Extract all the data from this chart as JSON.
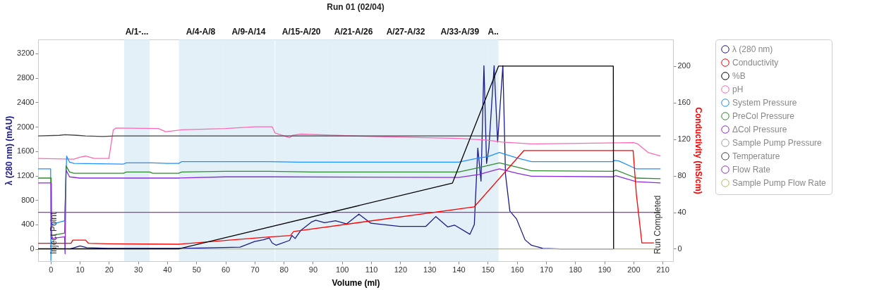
{
  "chart_data": {
    "type": "line",
    "title": "Run 01 (02/04)",
    "xlabel": "Volume (ml)",
    "ylabel": "λ (280 nm) (mAU)",
    "y2label": "Conductivity (mS/cm)",
    "xlim": [
      -4.3,
      213.6
    ],
    "ylim": [
      -200,
      3430
    ],
    "y2lim": [
      -13.5,
      229.2
    ],
    "xticks": [
      0,
      10,
      20,
      30,
      40,
      50,
      60,
      70,
      80,
      90,
      100,
      110,
      120,
      130,
      140,
      150,
      160,
      170,
      180,
      190,
      200,
      210
    ],
    "yticks": [
      0,
      400,
      800,
      1200,
      1600,
      2000,
      2400,
      2800,
      3200
    ],
    "y2ticks": [
      0,
      40,
      80,
      120,
      160,
      200
    ],
    "grid": false,
    "legend": "right",
    "series": [
      {
        "name": "λ (280 nm)",
        "color": "#1a1a8c",
        "x": [
          6.7,
          10.1,
          12.4,
          20,
          45,
          65,
          70,
          73,
          75,
          76,
          77.4,
          82.0,
          82.8,
          83.9,
          85.8,
          89.5,
          91.0,
          94.0,
          97.8,
          101.6,
          105.8,
          109.9,
          113.7,
          119.8,
          123.6,
          128.8,
          132.2,
          136.3,
          138.6,
          143.9,
          145.4,
          146.6,
          147.7,
          148.7,
          149.6,
          150.4,
          152.2,
          153.4,
          155.2,
          156.1,
          157.6,
          159.9,
          162.8,
          165,
          168.9,
          175,
          193
        ],
        "values": [
          0,
          50,
          20,
          10,
          10,
          30,
          120,
          150,
          180,
          100,
          60,
          140,
          220,
          170,
          300,
          440,
          470,
          430,
          460,
          410,
          570,
          420,
          400,
          370,
          370,
          370,
          530,
          360,
          390,
          240,
          400,
          1650,
          1110,
          3000,
          1400,
          1650,
          3000,
          1750,
          3000,
          1220,
          620,
          490,
          150,
          60,
          10,
          0,
          0
        ]
      },
      {
        "name": "Conductivity",
        "color": "#ff0000",
        "axis": "y2",
        "x": [
          -4.3,
          7,
          7.6,
          12,
          13,
          20,
          44,
          75,
          82.3,
          83.4,
          145.4,
          162.4,
          199.9,
          201,
          202.9,
          207
        ],
        "values": [
          6,
          6,
          9.5,
          9.5,
          6,
          5.5,
          5,
          13,
          14.5,
          19,
          46,
          107.5,
          107.5,
          60,
          6.5,
          6.5
        ]
      },
      {
        "name": "%B",
        "color": "#000000",
        "axis": "y2",
        "x": [
          -4.3,
          44.1,
          137.9,
          153.7,
          193.1,
          193.2
        ],
        "values": [
          0,
          0,
          72,
          200,
          200,
          0
        ]
      },
      {
        "name": "pH",
        "color": "#ff69b4",
        "x": [
          -4.3,
          8,
          10,
          12,
          15,
          20,
          21.5,
          22.5,
          37,
          39.5,
          45,
          60,
          70,
          76,
          77,
          82,
          83,
          86,
          110,
          140,
          150,
          155,
          165,
          200,
          201.5,
          205,
          209.3
        ],
        "values": [
          1480,
          1470,
          1500,
          1520,
          1480,
          1480,
          1950,
          1980,
          1970,
          1920,
          1950,
          1970,
          2000,
          2000,
          1900,
          1820,
          1860,
          1880,
          1840,
          1810,
          1780,
          1750,
          1720,
          1740,
          1720,
          1580,
          1520
        ]
      },
      {
        "name": "System Pressure",
        "color": "#1e90ff",
        "x": [
          -4.3,
          0,
          0.1,
          0.2,
          4.8,
          5.5,
          6.5,
          8,
          25,
          26,
          35,
          40,
          44,
          45,
          60,
          75,
          85,
          100,
          140,
          147,
          150,
          154,
          160,
          165,
          193,
          193.5,
          195,
          201,
          209.3
        ],
        "values": [
          1310,
          1310,
          -190,
          400,
          460,
          1520,
          1420,
          1400,
          1390,
          1410,
          1410,
          1400,
          1400,
          1430,
          1430,
          1430,
          1420,
          1420,
          1420,
          1490,
          1510,
          1580,
          1490,
          1430,
          1430,
          1450,
          1440,
          1310,
          1310
        ]
      },
      {
        "name": "PreCol Pressure",
        "color": "#2e8b2e",
        "x": [
          -4.3,
          0.2,
          0.3,
          4.8,
          5.3,
          6.5,
          8,
          25,
          26,
          34,
          35,
          44,
          45,
          60,
          75,
          90,
          140,
          147,
          154,
          160,
          165,
          193,
          194,
          201,
          209.3
        ],
        "values": [
          1160,
          1160,
          220,
          260,
          1360,
          1260,
          1240,
          1240,
          1260,
          1260,
          1240,
          1240,
          1260,
          1270,
          1270,
          1260,
          1260,
          1330,
          1410,
          1340,
          1280,
          1270,
          1290,
          1160,
          1150
        ]
      },
      {
        "name": "ΔCol Pressure",
        "color": "#8a2be2",
        "x": [
          -4.3,
          0.2,
          0.3,
          4.8,
          4.95,
          5.3,
          6.5,
          10,
          44,
          60,
          75,
          140,
          147,
          154,
          160,
          165,
          193,
          194,
          201,
          209.3
        ],
        "values": [
          1080,
          1080,
          170,
          200,
          -80,
          1290,
          1180,
          1160,
          1160,
          1180,
          1180,
          1170,
          1220,
          1310,
          1240,
          1190,
          1180,
          1200,
          1100,
          1080
        ]
      },
      {
        "name": "Sample Pump Pressure",
        "color": "#a0a0a0",
        "values": [
          null
        ]
      },
      {
        "name": "Temperature",
        "color": "#404040",
        "x": [
          -4.3,
          3,
          5,
          9,
          12,
          18,
          22,
          209.3
        ],
        "values": [
          1850,
          1860,
          1870,
          1860,
          1850,
          1840,
          1850,
          1850
        ]
      },
      {
        "name": "Flow Rate",
        "color": "#9932cc",
        "x": [
          -4.3,
          209.3
        ],
        "values": [
          600,
          600
        ]
      },
      {
        "name": "Sample Pump Flow Rate",
        "color": "#bdb76b",
        "x": [
          -4.3,
          209.3
        ],
        "values": [
          0,
          0
        ]
      }
    ],
    "bands": [
      {
        "axis": "x",
        "from": 25.2,
        "to": 34.0,
        "label": "A/1-...",
        "color": "#d9ebf4"
      },
      {
        "axis": "x",
        "from": 44.0,
        "to": 59.0,
        "label": "A/4-A/8",
        "color": "#d9ebf4"
      },
      {
        "axis": "x",
        "from": 59.0,
        "to": 76.9,
        "label": "A/9-A/14",
        "color": "#d9ebf4"
      },
      {
        "axis": "x",
        "from": 77.1,
        "to": 95.0,
        "label": "A/15-A/20",
        "color": "#d9ebf4"
      },
      {
        "axis": "x",
        "from": 95.0,
        "to": 112.9,
        "label": "A/21-A/26",
        "color": "#d9ebf4"
      },
      {
        "axis": "x",
        "from": 112.9,
        "to": 130.8,
        "label": "A/27-A/32",
        "color": "#d9ebf4"
      },
      {
        "axis": "x",
        "from": 130.8,
        "to": 150.1,
        "label": "A/33-A/39",
        "color": "#d9ebf4"
      },
      {
        "axis": "x",
        "from": 150.1,
        "to": 153.7,
        "label": "A..",
        "color": "#d9ebf4"
      }
    ],
    "annotations": [
      "Inject Point",
      "Run Completed"
    ]
  }
}
